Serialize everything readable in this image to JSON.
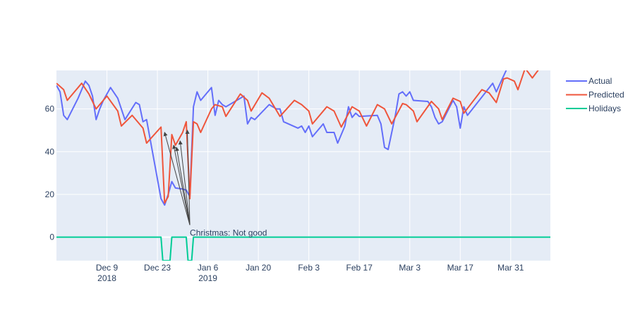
{
  "chart_data": {
    "type": "line",
    "xlim": [
      "2018-11-25",
      "2019-04-11"
    ],
    "ylim": [
      -11,
      78
    ],
    "grid": true,
    "legend_position": "top-right",
    "x_ticks": [
      {
        "date": "2018-12-09",
        "label": "Dec 9",
        "sublabel": "2018"
      },
      {
        "date": "2018-12-23",
        "label": "Dec 23",
        "sublabel": ""
      },
      {
        "date": "2019-01-06",
        "label": "Jan 6",
        "sublabel": "2019"
      },
      {
        "date": "2019-01-20",
        "label": "Jan 20",
        "sublabel": ""
      },
      {
        "date": "2019-02-03",
        "label": "Feb 3",
        "sublabel": ""
      },
      {
        "date": "2019-02-17",
        "label": "Feb 17",
        "sublabel": ""
      },
      {
        "date": "2019-03-03",
        "label": "Mar 3",
        "sublabel": ""
      },
      {
        "date": "2019-03-17",
        "label": "Mar 17",
        "sublabel": ""
      },
      {
        "date": "2019-03-31",
        "label": "Mar 31",
        "sublabel": ""
      }
    ],
    "y_ticks": [
      0,
      20,
      40,
      60
    ],
    "series": [
      {
        "name": "Actual",
        "color": "#636efa",
        "points": [
          [
            "2018-11-25",
            71
          ],
          [
            "2018-11-26",
            68
          ],
          [
            "2018-11-27",
            57
          ],
          [
            "2018-11-28",
            55
          ],
          [
            "2018-12-01",
            65
          ],
          [
            "2018-12-03",
            73
          ],
          [
            "2018-12-04",
            71
          ],
          [
            "2018-12-05",
            66
          ],
          [
            "2018-12-06",
            55
          ],
          [
            "2018-12-07",
            60
          ],
          [
            "2018-12-08",
            64
          ],
          [
            "2018-12-10",
            70
          ],
          [
            "2018-12-12",
            65
          ],
          [
            "2018-12-14",
            55
          ],
          [
            "2018-12-17",
            63
          ],
          [
            "2018-12-18",
            62
          ],
          [
            "2018-12-19",
            54
          ],
          [
            "2018-12-20",
            55
          ],
          [
            "2018-12-24",
            18
          ],
          [
            "2018-12-25",
            15
          ],
          [
            "2018-12-26",
            20
          ],
          [
            "2018-12-27",
            26
          ],
          [
            "2018-12-28",
            23
          ],
          [
            "2018-12-30",
            22.5
          ],
          [
            "2018-12-31",
            22
          ],
          [
            "2019-01-01",
            19
          ],
          [
            "2019-01-02",
            61
          ],
          [
            "2019-01-03",
            68
          ],
          [
            "2019-01-04",
            64
          ],
          [
            "2019-01-07",
            70
          ],
          [
            "2019-01-08",
            57
          ],
          [
            "2019-01-09",
            64
          ],
          [
            "2019-01-10",
            62
          ],
          [
            "2019-01-11",
            61
          ],
          [
            "2019-01-14",
            64
          ],
          [
            "2019-01-16",
            66
          ],
          [
            "2019-01-17",
            53
          ],
          [
            "2019-01-18",
            56
          ],
          [
            "2019-01-19",
            55
          ],
          [
            "2019-01-23",
            62
          ],
          [
            "2019-01-25",
            60
          ],
          [
            "2019-01-26",
            60
          ],
          [
            "2019-01-27",
            54
          ],
          [
            "2019-01-31",
            51
          ],
          [
            "2019-02-01",
            52
          ],
          [
            "2019-02-02",
            49
          ],
          [
            "2019-02-03",
            52
          ],
          [
            "2019-02-04",
            47
          ],
          [
            "2019-02-07",
            53
          ],
          [
            "2019-02-08",
            49
          ],
          [
            "2019-02-10",
            49
          ],
          [
            "2019-02-11",
            44
          ],
          [
            "2019-02-13",
            52
          ],
          [
            "2019-02-14",
            61
          ],
          [
            "2019-02-15",
            56
          ],
          [
            "2019-02-16",
            58
          ],
          [
            "2019-02-17",
            56.5
          ],
          [
            "2019-02-22",
            57
          ],
          [
            "2019-02-23",
            53
          ],
          [
            "2019-02-24",
            42
          ],
          [
            "2019-02-25",
            41
          ],
          [
            "2019-02-27",
            57
          ],
          [
            "2019-02-28",
            67
          ],
          [
            "2019-03-01",
            68
          ],
          [
            "2019-03-02",
            66
          ],
          [
            "2019-03-03",
            68
          ],
          [
            "2019-03-04",
            64
          ],
          [
            "2019-03-08",
            63.5
          ],
          [
            "2019-03-09",
            61
          ],
          [
            "2019-03-10",
            56
          ],
          [
            "2019-03-11",
            53
          ],
          [
            "2019-03-12",
            54
          ],
          [
            "2019-03-15",
            64
          ],
          [
            "2019-03-16",
            61
          ],
          [
            "2019-03-17",
            51
          ],
          [
            "2019-03-18",
            61
          ],
          [
            "2019-03-19",
            57
          ],
          [
            "2019-03-26",
            72
          ],
          [
            "2019-03-27",
            68
          ],
          [
            "2019-03-30",
            79
          ]
        ]
      },
      {
        "name": "Predicted",
        "color": "#ef553b",
        "points": [
          [
            "2018-11-25",
            72
          ],
          [
            "2018-11-27",
            69
          ],
          [
            "2018-11-28",
            64
          ],
          [
            "2018-12-02",
            72
          ],
          [
            "2018-12-04",
            67
          ],
          [
            "2018-12-06",
            60
          ],
          [
            "2018-12-07",
            62
          ],
          [
            "2018-12-09",
            66
          ],
          [
            "2018-12-12",
            59
          ],
          [
            "2018-12-13",
            52
          ],
          [
            "2018-12-16",
            57
          ],
          [
            "2018-12-19",
            51
          ],
          [
            "2018-12-20",
            44
          ],
          [
            "2018-12-24",
            51.5
          ],
          [
            "2018-12-25",
            16
          ],
          [
            "2018-12-26",
            19
          ],
          [
            "2018-12-27",
            48
          ],
          [
            "2018-12-28",
            43
          ],
          [
            "2018-12-29",
            46
          ],
          [
            "2018-12-30",
            49
          ],
          [
            "2018-12-31",
            54
          ],
          [
            "2019-01-01",
            18
          ],
          [
            "2019-01-02",
            54
          ],
          [
            "2019-01-03",
            53
          ],
          [
            "2019-01-04",
            49
          ],
          [
            "2019-01-07",
            60
          ],
          [
            "2019-01-08",
            62
          ],
          [
            "2019-01-10",
            61
          ],
          [
            "2019-01-11",
            56.5
          ],
          [
            "2019-01-15",
            67
          ],
          [
            "2019-01-17",
            64
          ],
          [
            "2019-01-18",
            59
          ],
          [
            "2019-01-21",
            67.5
          ],
          [
            "2019-01-23",
            65
          ],
          [
            "2019-01-26",
            56.5
          ],
          [
            "2019-01-30",
            64
          ],
          [
            "2019-02-01",
            62
          ],
          [
            "2019-02-03",
            59
          ],
          [
            "2019-02-04",
            53
          ],
          [
            "2019-02-08",
            61
          ],
          [
            "2019-02-10",
            59
          ],
          [
            "2019-02-12",
            51.5
          ],
          [
            "2019-02-15",
            61
          ],
          [
            "2019-02-17",
            59
          ],
          [
            "2019-02-19",
            52
          ],
          [
            "2019-02-22",
            62
          ],
          [
            "2019-02-24",
            60
          ],
          [
            "2019-02-26",
            53
          ],
          [
            "2019-03-01",
            62.5
          ],
          [
            "2019-03-02",
            62
          ],
          [
            "2019-03-04",
            59
          ],
          [
            "2019-03-05",
            54
          ],
          [
            "2019-03-09",
            63.5
          ],
          [
            "2019-03-11",
            60
          ],
          [
            "2019-03-12",
            55
          ],
          [
            "2019-03-15",
            65
          ],
          [
            "2019-03-17",
            63.5
          ],
          [
            "2019-03-18",
            58
          ],
          [
            "2019-03-23",
            69
          ],
          [
            "2019-03-25",
            67.5
          ],
          [
            "2019-03-27",
            63
          ],
          [
            "2019-03-29",
            74
          ],
          [
            "2019-03-30",
            74.5
          ],
          [
            "2019-04-01",
            73
          ],
          [
            "2019-04-02",
            69
          ],
          [
            "2019-04-04",
            79
          ],
          [
            "2019-04-06",
            74.5
          ],
          [
            "2019-04-08",
            79
          ]
        ]
      },
      {
        "name": "Holidays",
        "color": "#00cc96",
        "points": [
          [
            "2018-11-25",
            0
          ],
          [
            "2018-12-24",
            0
          ],
          [
            "2018-12-24.5",
            -11
          ],
          [
            "2018-12-26.5",
            -11
          ],
          [
            "2018-12-27",
            0
          ],
          [
            "2018-12-31",
            0
          ],
          [
            "2018-12-31.5",
            -11
          ],
          [
            "2019-01-01.5",
            -11
          ],
          [
            "2019-01-02",
            0
          ],
          [
            "2019-04-11",
            0
          ]
        ]
      }
    ],
    "annotations": [
      {
        "text": "Christmas: Not good",
        "anchor": [
          "2019-01-01",
          5
        ],
        "arrow_targets": [
          [
            "2018-12-25",
            49
          ],
          [
            "2018-12-27.5",
            43
          ],
          [
            "2018-12-28.3",
            42
          ],
          [
            "2018-12-29.3",
            45
          ],
          [
            "2018-12-31.3",
            50
          ]
        ]
      }
    ]
  }
}
